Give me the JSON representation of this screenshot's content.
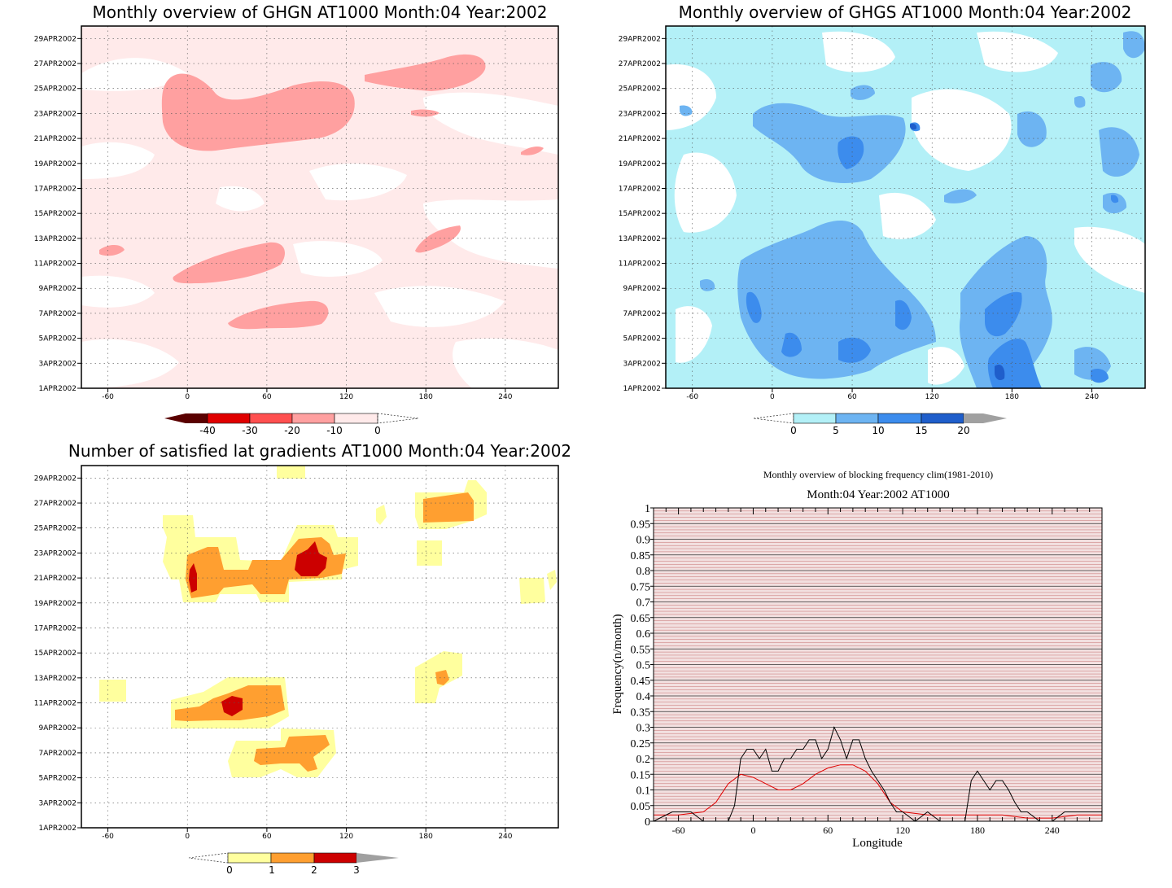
{
  "colors": {
    "ghgn_levels": [
      "#5a0000",
      "#e00000",
      "#ff5050",
      "#ffa0a0",
      "#ffeaea"
    ],
    "ghgs_levels": [
      "#b3f0f7",
      "#6db4f2",
      "#3c8ced",
      "#1f5ecb",
      "#a0a0a0"
    ],
    "sat_levels": [
      "#ffff9e",
      "#ff9f30",
      "#cc0000",
      "#a0a0a0"
    ],
    "block_black": "#000000",
    "block_red": "#e00000",
    "block_bg": "#f2e0e0"
  },
  "panels": [
    {
      "id": "ghgn",
      "title": "Monthly overview of GHGN AT1000 Month:04 Year:2002",
      "xticks": [
        "-60",
        "0",
        "60",
        "120",
        "180",
        "240"
      ],
      "yticks": [
        "1APR2002",
        "3APR2002",
        "5APR2002",
        "7APR2002",
        "9APR2002",
        "11APR2002",
        "13APR2002",
        "15APR2002",
        "17APR2002",
        "19APR2002",
        "21APR2002",
        "23APR2002",
        "25APR2002",
        "27APR2002",
        "29APR2002"
      ],
      "colorbar": [
        "-40",
        "-30",
        "-20",
        "-10",
        "0"
      ]
    },
    {
      "id": "ghgs",
      "title": "Monthly overview of GHGS AT1000 Month:04 Year:2002",
      "xticks": [
        "-60",
        "0",
        "60",
        "120",
        "180",
        "240"
      ],
      "yticks": [
        "1APR2002",
        "3APR2002",
        "5APR2002",
        "7APR2002",
        "9APR2002",
        "11APR2002",
        "13APR2002",
        "15APR2002",
        "17APR2002",
        "19APR2002",
        "21APR2002",
        "23APR2002",
        "25APR2002",
        "27APR2002",
        "29APR2002"
      ],
      "colorbar": [
        "0",
        "5",
        "10",
        "15",
        "20"
      ]
    },
    {
      "id": "sat",
      "title": "Number of satisfied lat gradients AT1000 Month:04 Year:2002",
      "xticks": [
        "-60",
        "0",
        "60",
        "120",
        "180",
        "240"
      ],
      "yticks": [
        "1APR2002",
        "3APR2002",
        "5APR2002",
        "7APR2002",
        "9APR2002",
        "11APR2002",
        "13APR2002",
        "15APR2002",
        "17APR2002",
        "19APR2002",
        "21APR2002",
        "23APR2002",
        "25APR2002",
        "27APR2002",
        "29APR2002"
      ],
      "colorbar": [
        "0",
        "1",
        "2",
        "3"
      ]
    }
  ],
  "block": {
    "title": "Monthly overview of blocking frequency clim(1981-2010)",
    "subtitle": "Month:04 Year:2002  AT1000",
    "xlabel": "Longitude",
    "ylabel": "Frequency(n/month)",
    "xticks": [
      "-60",
      "0",
      "60",
      "120",
      "180",
      "240"
    ],
    "yticks": [
      "0",
      "0.05",
      "0.1",
      "0.15",
      "0.2",
      "0.25",
      "0.3",
      "0.35",
      "0.4",
      "0.45",
      "0.5",
      "0.55",
      "0.6",
      "0.65",
      "0.7",
      "0.75",
      "0.8",
      "0.85",
      "0.9",
      "0.95",
      "1"
    ]
  },
  "chart_data": [
    {
      "type": "heatmap",
      "title": "Monthly overview of GHGN AT1000 Month:04 Year:2002",
      "xlim": [
        -80,
        280
      ],
      "y_range": [
        "1APR2002",
        "30APR2002"
      ],
      "levels": [
        -40,
        -30,
        -20,
        -10,
        0
      ],
      "regions": [
        {
          "level": -10,
          "lon_range": [
            -40,
            130
          ],
          "dates": [
            "20APR2002",
            "25APR2002"
          ]
        },
        {
          "level": -10,
          "lon_range": [
            130,
            225
          ],
          "dates": [
            "25APR2002",
            "28APR2002"
          ]
        },
        {
          "level": -10,
          "lon_range": [
            -10,
            75
          ],
          "dates": [
            "10APR2002",
            "12APR2002"
          ]
        },
        {
          "level": -10,
          "lon_range": [
            30,
            110
          ],
          "dates": [
            "6APR2002",
            "8APR2002"
          ]
        },
        {
          "level": -10,
          "lon_range": [
            175,
            205
          ],
          "dates": [
            "12APR2002",
            "14APR2002"
          ]
        }
      ]
    },
    {
      "type": "heatmap",
      "title": "Monthly overview of GHGS AT1000 Month:04 Year:2002",
      "xlim": [
        -80,
        280
      ],
      "y_range": [
        "1APR2002",
        "30APR2002"
      ],
      "levels": [
        0,
        5,
        10,
        15,
        20
      ],
      "regions": [
        {
          "level": 5,
          "lon_range": [
            -40,
            80
          ],
          "dates": [
            "2APR2002",
            "12APR2002"
          ]
        },
        {
          "level": 5,
          "lon_range": [
            150,
            250
          ],
          "dates": [
            "1APR2002",
            "11APR2002"
          ]
        },
        {
          "level": 5,
          "lon_range": [
            -20,
            100
          ],
          "dates": [
            "19APR2002",
            "25APR2002"
          ]
        },
        {
          "level": 10,
          "lon_range": [
            40,
            90
          ],
          "dates": [
            "3APR2002",
            "7APR2002"
          ]
        },
        {
          "level": 10,
          "lon_range": [
            175,
            215
          ],
          "dates": [
            "1APR2002",
            "5APR2002"
          ]
        },
        {
          "level": 10,
          "lon_range": [
            50,
            80
          ],
          "dates": [
            "19APR2002",
            "21APR2002"
          ]
        }
      ]
    },
    {
      "type": "heatmap",
      "title": "Number of satisfied lat gradients AT1000 Month:04 Year:2002",
      "xlim": [
        -80,
        280
      ],
      "y_range": [
        "1APR2002",
        "30APR2002"
      ],
      "levels": [
        0,
        1,
        2,
        3
      ],
      "regions": [
        {
          "level": 1,
          "lon_range": [
            0,
            125
          ],
          "dates": [
            "20APR2002",
            "25APR2002"
          ]
        },
        {
          "level": 2,
          "lon_range": [
            5,
            120
          ],
          "dates": [
            "21APR2002",
            "24APR2002"
          ]
        },
        {
          "level": 3,
          "lon_range": [
            80,
            105
          ],
          "dates": [
            "22APR2002",
            "24APR2002"
          ]
        },
        {
          "level": 3,
          "lon_range": [
            3,
            10
          ],
          "dates": [
            "21APR2002",
            "22APR2002"
          ]
        },
        {
          "level": 1,
          "lon_range": [
            -10,
            75
          ],
          "dates": [
            "10APR2002",
            "13APR2002"
          ]
        },
        {
          "level": 2,
          "lon_range": [
            0,
            72
          ],
          "dates": [
            "10APR2002",
            "12APR2002"
          ]
        },
        {
          "level": 3,
          "lon_range": [
            28,
            45
          ],
          "dates": [
            "11APR2002",
            "12APR2002"
          ]
        },
        {
          "level": 1,
          "lon_range": [
            30,
            110
          ],
          "dates": [
            "5APR2002",
            "9APR2002"
          ]
        },
        {
          "level": 2,
          "lon_range": [
            50,
            105
          ],
          "dates": [
            "6APR2002",
            "8APR2002"
          ]
        },
        {
          "level": 1,
          "lon_range": [
            175,
            215
          ],
          "dates": [
            "26APR2002",
            "28APR2002"
          ]
        },
        {
          "level": 2,
          "lon_range": [
            178,
            212
          ],
          "dates": [
            "26APR2002",
            "28APR2002"
          ]
        },
        {
          "level": 1,
          "lon_range": [
            -65,
            -45
          ],
          "dates": [
            "11APR2002",
            "13APR2002"
          ]
        },
        {
          "level": 1,
          "lon_range": [
            175,
            205
          ],
          "dates": [
            "11APR2002",
            "14APR2002"
          ]
        },
        {
          "level": 1,
          "lon_range": [
            255,
            275
          ],
          "dates": [
            "19APR2002",
            "21APR2002"
          ]
        }
      ]
    },
    {
      "type": "line",
      "title": "Monthly overview of blocking frequency clim(1981-2010)",
      "subtitle": "Month:04 Year:2002  AT1000",
      "xlabel": "Longitude",
      "ylabel": "Frequency(n/month)",
      "xlim": [
        -80,
        280
      ],
      "ylim": [
        0,
        1
      ],
      "series": [
        {
          "color": "#000000",
          "x": [
            -80,
            -65,
            -50,
            -40,
            -30,
            -20,
            -15,
            -10,
            -5,
            0,
            5,
            10,
            15,
            20,
            25,
            30,
            35,
            40,
            45,
            50,
            55,
            60,
            65,
            70,
            75,
            80,
            85,
            90,
            95,
            100,
            105,
            110,
            115,
            120,
            130,
            140,
            150,
            160,
            170,
            175,
            180,
            185,
            190,
            195,
            200,
            205,
            210,
            215,
            220,
            230,
            240,
            250,
            260,
            270,
            280
          ],
          "y": [
            0,
            0.03,
            0.03,
            0,
            0,
            0,
            0.05,
            0.2,
            0.23,
            0.23,
            0.2,
            0.23,
            0.16,
            0.16,
            0.2,
            0.2,
            0.23,
            0.23,
            0.26,
            0.26,
            0.2,
            0.23,
            0.3,
            0.26,
            0.2,
            0.26,
            0.26,
            0.2,
            0.16,
            0.13,
            0.1,
            0.06,
            0.03,
            0.03,
            0,
            0.03,
            0,
            0,
            0,
            0.13,
            0.16,
            0.13,
            0.1,
            0.13,
            0.13,
            0.1,
            0.06,
            0.03,
            0.03,
            0,
            0,
            0.03,
            0.03,
            0.03,
            0.03
          ]
        },
        {
          "color": "#e00000",
          "x": [
            -80,
            -60,
            -40,
            -30,
            -20,
            -10,
            0,
            10,
            20,
            30,
            40,
            50,
            60,
            70,
            80,
            90,
            100,
            110,
            120,
            140,
            160,
            180,
            200,
            220,
            240,
            260,
            270,
            280
          ],
          "y": [
            0.02,
            0.02,
            0.03,
            0.06,
            0.12,
            0.15,
            0.14,
            0.12,
            0.1,
            0.1,
            0.12,
            0.15,
            0.17,
            0.18,
            0.18,
            0.16,
            0.12,
            0.06,
            0.03,
            0.02,
            0.02,
            0.02,
            0.02,
            0.01,
            0.01,
            0.02,
            0.02,
            0.02
          ]
        }
      ]
    }
  ]
}
